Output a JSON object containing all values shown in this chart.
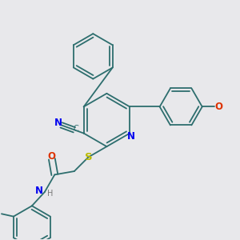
{
  "bg_color": "#e8e8eb",
  "bond_color": "#2d6e6e",
  "atom_colors": {
    "N": "#0000ee",
    "O": "#dd3300",
    "S": "#bbbb00",
    "C": "#2d6e6e",
    "H": "#777777"
  },
  "line_width": 1.3,
  "font_size": 8.5,
  "fig_size": [
    3.0,
    3.0
  ],
  "dpi": 100
}
